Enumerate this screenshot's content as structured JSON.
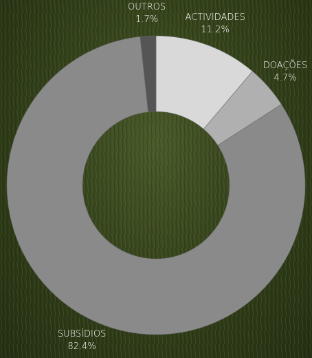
{
  "chart_data": {
    "type": "donut",
    "categories": [
      "ACTIVIDADES",
      "DOAÇÕES",
      "SUBSÍDIOS",
      "OUTROS"
    ],
    "values": [
      11.2,
      4.7,
      82.4,
      1.7
    ],
    "value_labels": [
      "11.2%",
      "4.7%",
      "82.4%",
      "1.7%"
    ],
    "colors": [
      "#d9d9d9",
      "#b0b0b0",
      "#8a8a8a",
      "#555555"
    ]
  }
}
